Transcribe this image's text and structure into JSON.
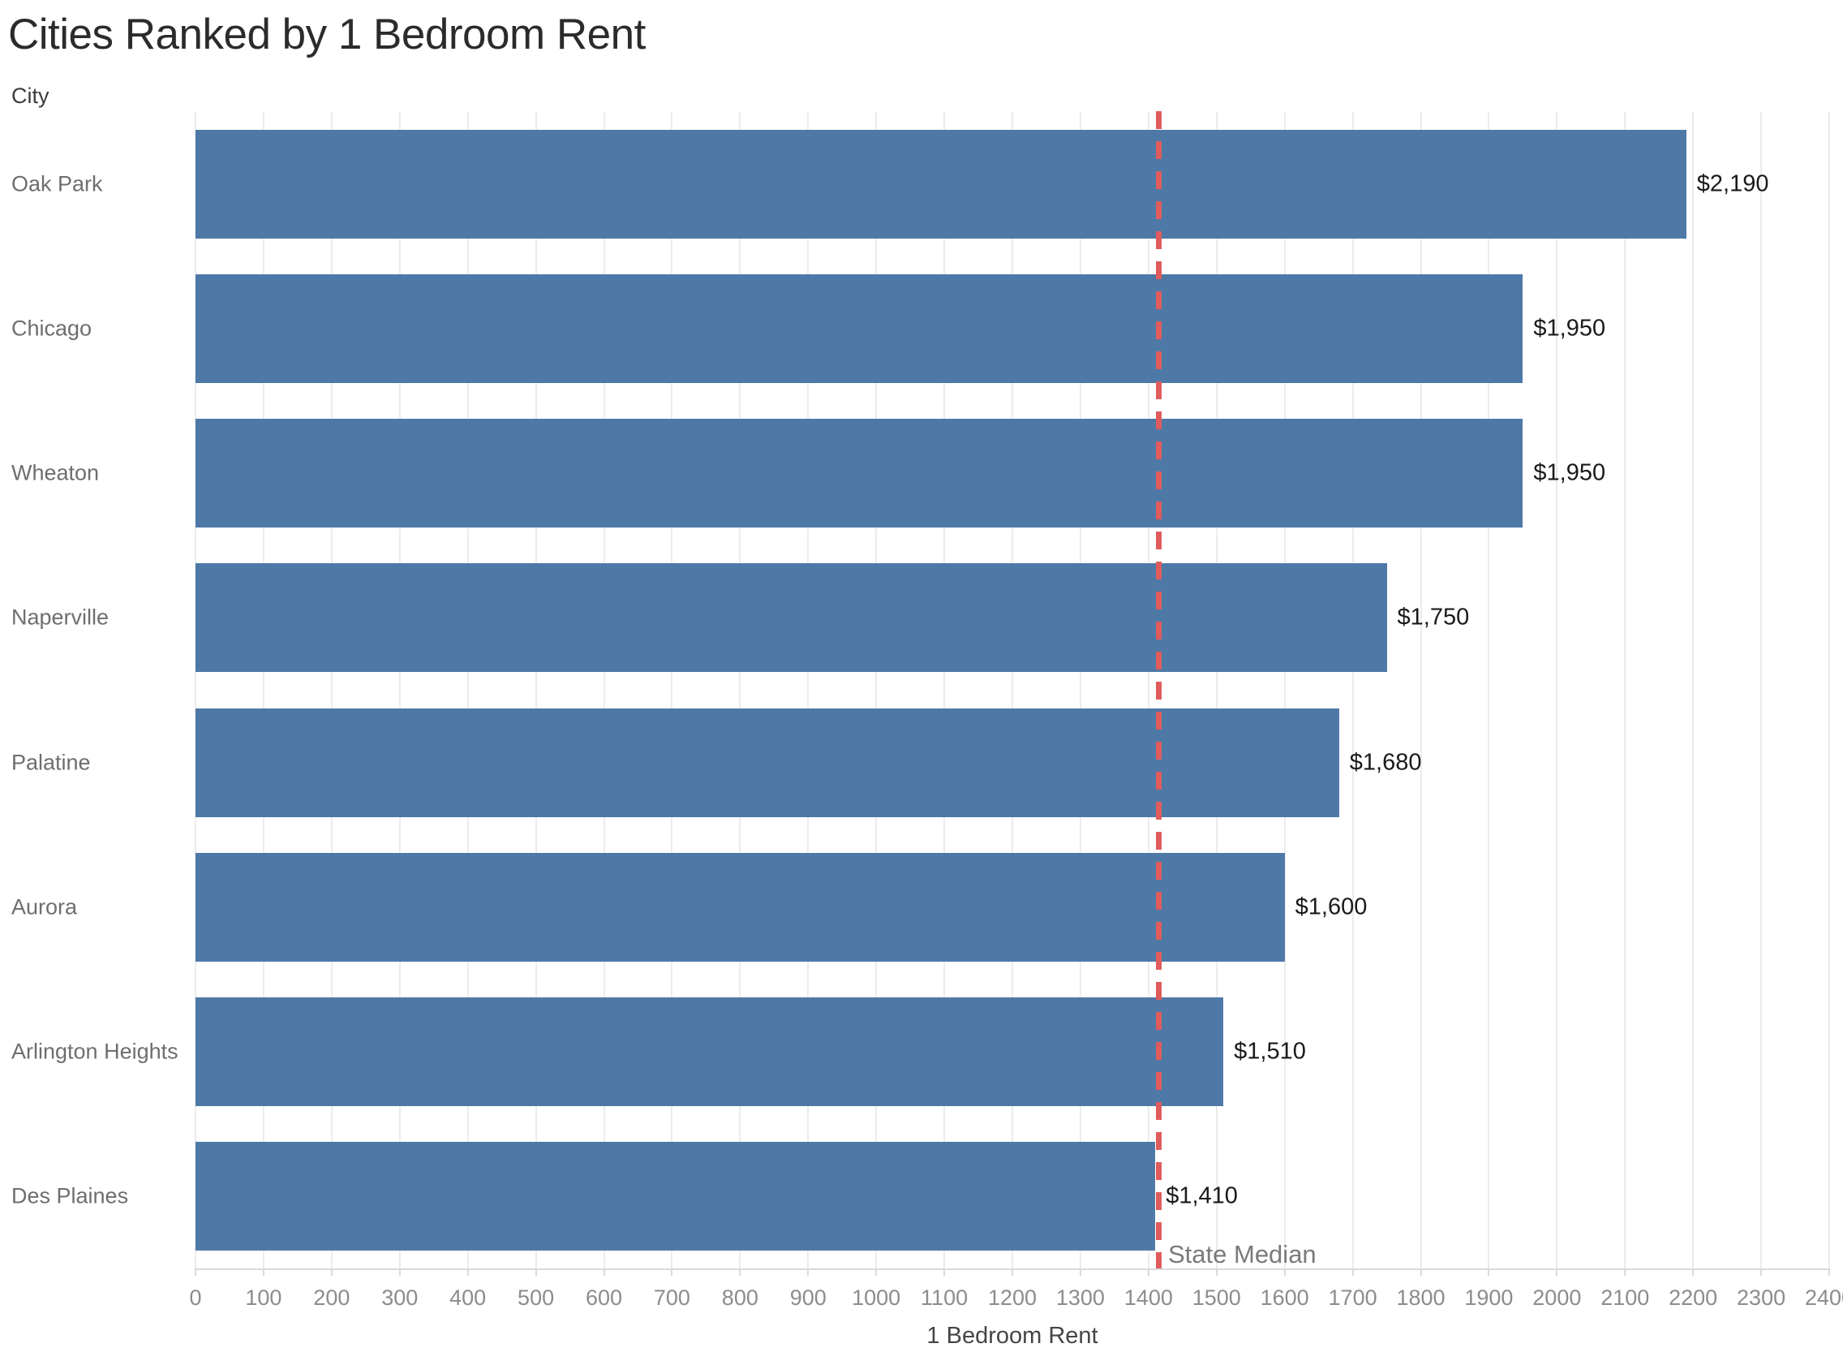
{
  "title": "Cities Ranked by 1 Bedroom Rent",
  "chart_data": {
    "type": "bar",
    "orientation": "horizontal",
    "title": "Cities Ranked by 1 Bedroom Rent",
    "ylabel": "City",
    "xlabel": "1 Bedroom Rent",
    "categories": [
      "Oak Park",
      "Chicago",
      "Wheaton",
      "Naperville",
      "Palatine",
      "Aurora",
      "Arlington Heights",
      "Des Plaines"
    ],
    "values": [
      2190,
      1950,
      1950,
      1750,
      1680,
      1600,
      1510,
      1410
    ],
    "value_labels": [
      "$2,190",
      "$1,950",
      "$1,950",
      "$1,750",
      "$1,680",
      "$1,600",
      "$1,510",
      "$1,410"
    ],
    "xlim": [
      0,
      2400
    ],
    "x_tick_step": 100,
    "grid": true,
    "legend": "none",
    "reference_line": {
      "label": "State Median",
      "value": 1415,
      "style": "dashed"
    }
  },
  "colors": {
    "bar": "#4e79a7",
    "reference_line": "#e05c5c",
    "gridline": "#ececec",
    "axis_line": "#d9d9d9",
    "title_text": "#2b2b2b",
    "category_text": "#6e6e6e",
    "value_text": "#1a1a1a",
    "tick_text": "#8c8c8c"
  }
}
